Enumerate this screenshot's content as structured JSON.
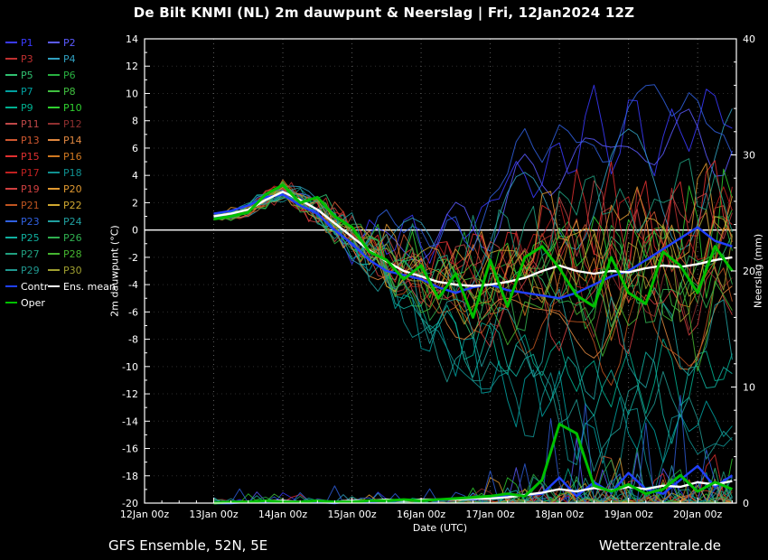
{
  "footer": {
    "left": "GFS Ensemble, 52N, 5E",
    "right": "Wetterzentrale.de"
  },
  "legend_specials": {
    "control": {
      "label": "Control"
    },
    "ens_mean": {
      "label": "Ens. mean"
    },
    "oper": {
      "label": "Oper"
    }
  },
  "chart_data": {
    "type": "line",
    "title": "De Bilt KNMI  (NL)  2m dauwpunt & Neerslag | Fri, 12Jan2024 12Z",
    "xlabel": "Date (UTC)",
    "ylabel_left": "2m dauwpunt (°C)",
    "ylabel_right": "Neerslag (mm)",
    "x_tick_labels": [
      "12Jan 00z",
      "13Jan 00z",
      "14Jan 00z",
      "15Jan 00z",
      "16Jan 00z",
      "17Jan 00z",
      "18Jan 00z",
      "19Jan 00z",
      "20Jan 00z"
    ],
    "ylim_left": [
      -20,
      14
    ],
    "ytick_step_left": 2,
    "ylim_right": [
      0,
      40
    ],
    "ytick_step_right": 10,
    "zero_line_value": 0,
    "grid": "dotted",
    "legend_position": "left",
    "t0": 1.0,
    "dt": 0.25,
    "t_axis_end": 8.56,
    "series": {
      "ens_mean": {
        "label": "Ens. mean",
        "color": "#ffffff",
        "dew": [
          1.0,
          1.2,
          1.5,
          2.2,
          2.8,
          2.2,
          1.5,
          0.5,
          -0.5,
          -1.5,
          -2.3,
          -3.0,
          -3.4,
          -3.8,
          -4.0,
          -4.1,
          -4.0,
          -3.8,
          -3.5,
          -3.0,
          -2.6,
          -3.0,
          -3.2,
          -3.0,
          -3.1,
          -2.8,
          -2.6,
          -2.7,
          -2.5,
          -2.2,
          -2.0
        ],
        "precip": [
          0.0,
          0.1,
          0.1,
          0.2,
          0.2,
          0.1,
          0.2,
          0.1,
          0.2,
          0.2,
          0.3,
          0.2,
          0.3,
          0.3,
          0.3,
          0.4,
          0.4,
          0.5,
          0.7,
          0.9,
          1.2,
          1.0,
          1.3,
          1.1,
          1.4,
          1.2,
          1.5,
          1.4,
          1.8,
          1.6,
          1.9
        ]
      },
      "control": {
        "label": "Control",
        "color": "#2040ff",
        "dew": [
          1.2,
          1.4,
          1.8,
          2.4,
          2.6,
          1.8,
          1.2,
          0.0,
          -1.0,
          -2.2,
          -3.0,
          -3.3,
          -3.6,
          -4.2,
          -4.6,
          -4.2,
          -4.0,
          -4.4,
          -4.6,
          -4.8,
          -5.0,
          -4.6,
          -4.0,
          -3.4,
          -3.0,
          -2.2,
          -1.4,
          -0.6,
          0.2,
          -0.8,
          -1.2
        ],
        "precip": [
          0.0,
          0.0,
          0.1,
          0.1,
          0.2,
          0.1,
          0.1,
          0.0,
          0.2,
          0.1,
          0.2,
          0.2,
          0.3,
          0.2,
          0.4,
          0.3,
          0.5,
          0.6,
          0.7,
          0.8,
          2.2,
          0.6,
          1.8,
          0.9,
          2.6,
          1.2,
          0.8,
          2.0,
          3.2,
          1.4,
          2.4
        ]
      },
      "oper": {
        "label": "Oper",
        "color": "#00c000",
        "dew": [
          0.8,
          1.0,
          1.3,
          2.6,
          3.3,
          2.0,
          2.4,
          1.0,
          0.2,
          -1.6,
          -2.2,
          -3.6,
          -2.6,
          -5.0,
          -3.2,
          -6.4,
          -2.2,
          -5.6,
          -2.0,
          -1.2,
          -2.8,
          -4.8,
          -5.6,
          -2.0,
          -4.6,
          -5.4,
          -1.6,
          -2.6,
          -4.6,
          -1.2,
          -3.0
        ],
        "precip": [
          0.0,
          0.1,
          0.1,
          0.2,
          0.1,
          0.1,
          0.2,
          0.1,
          0.1,
          0.2,
          0.2,
          0.3,
          0.2,
          0.3,
          0.4,
          0.5,
          0.6,
          0.8,
          0.6,
          2.0,
          6.8,
          6.0,
          1.5,
          1.0,
          1.6,
          0.8,
          1.2,
          2.4,
          1.0,
          1.8,
          1.2
        ]
      }
    },
    "ensemble": {
      "spread_t": [
        1,
        2,
        3,
        4,
        5,
        6,
        7,
        8.5
      ],
      "spread_v": [
        0.4,
        0.9,
        2.0,
        3.0,
        3.5,
        4.0,
        4.5,
        5.0
      ],
      "members": [
        {
          "label": "P1",
          "color": "#3a3aff",
          "seed": 17,
          "bias": 10,
          "wet": 6
        },
        {
          "label": "P2",
          "color": "#5b5bff",
          "seed": 29,
          "bias": 9,
          "wet": 7
        },
        {
          "label": "P3",
          "color": "#c03030",
          "seed": 41,
          "bias": 2,
          "wet": 2
        },
        {
          "label": "P4",
          "color": "#30a0c0",
          "seed": 53,
          "bias": 6,
          "wet": 5
        },
        {
          "label": "P5",
          "color": "#30c070",
          "seed": 65,
          "bias": -1,
          "wet": 3
        },
        {
          "label": "P6",
          "color": "#28b040",
          "seed": 77,
          "bias": 1,
          "wet": 4
        },
        {
          "label": "P7",
          "color": "#00a0a0",
          "seed": 89,
          "bias": -12,
          "wet": 2
        },
        {
          "label": "P8",
          "color": "#40c040",
          "seed": 101,
          "bias": 0,
          "wet": 5
        },
        {
          "label": "P9",
          "color": "#00b090",
          "seed": 113,
          "bias": -8,
          "wet": 3
        },
        {
          "label": "P10",
          "color": "#30d030",
          "seed": 125,
          "bias": 2,
          "wet": 6
        },
        {
          "label": "P11",
          "color": "#c04848",
          "seed": 137,
          "bias": 3,
          "wet": 2
        },
        {
          "label": "P12",
          "color": "#903030",
          "seed": 149,
          "bias": -2,
          "wet": 3
        },
        {
          "label": "P13",
          "color": "#d05830",
          "seed": 161,
          "bias": 1,
          "wet": 4
        },
        {
          "label": "P14",
          "color": "#e08840",
          "seed": 173,
          "bias": -4,
          "wet": 2
        },
        {
          "label": "P15",
          "color": "#e03030",
          "seed": 185,
          "bias": 4,
          "wet": 5
        },
        {
          "label": "P16",
          "color": "#d07820",
          "seed": 197,
          "bias": -1,
          "wet": 3
        },
        {
          "label": "P17",
          "color": "#c02020",
          "seed": 209,
          "bias": 2,
          "wet": 2
        },
        {
          "label": "P18",
          "color": "#109090",
          "seed": 221,
          "bias": -13,
          "wet": 4
        },
        {
          "label": "P19",
          "color": "#d04040",
          "seed": 233,
          "bias": -3,
          "wet": 3
        },
        {
          "label": "P20",
          "color": "#e09830",
          "seed": 245,
          "bias": 3,
          "wet": 5
        },
        {
          "label": "P21",
          "color": "#c05520",
          "seed": 257,
          "bias": -5,
          "wet": 2
        },
        {
          "label": "P22",
          "color": "#d0a830",
          "seed": 269,
          "bias": 1,
          "wet": 3
        },
        {
          "label": "P23",
          "color": "#3060e0",
          "seed": 281,
          "bias": 11,
          "wet": 8
        },
        {
          "label": "P24",
          "color": "#20a0a0",
          "seed": 293,
          "bias": -6,
          "wet": 4
        },
        {
          "label": "P25",
          "color": "#10b0a0",
          "seed": 305,
          "bias": -9,
          "wet": 3
        },
        {
          "label": "P26",
          "color": "#30b050",
          "seed": 317,
          "bias": -2,
          "wet": 5
        },
        {
          "label": "P27",
          "color": "#20a080",
          "seed": 329,
          "bias": 5,
          "wet": 6
        },
        {
          "label": "P28",
          "color": "#45b530",
          "seed": 341,
          "bias": -3,
          "wet": 3
        },
        {
          "label": "P29",
          "color": "#209890",
          "seed": 353,
          "bias": -11,
          "wet": 4
        },
        {
          "label": "P30",
          "color": "#a0a030",
          "seed": 365,
          "bias": 0,
          "wet": 2
        }
      ]
    }
  }
}
